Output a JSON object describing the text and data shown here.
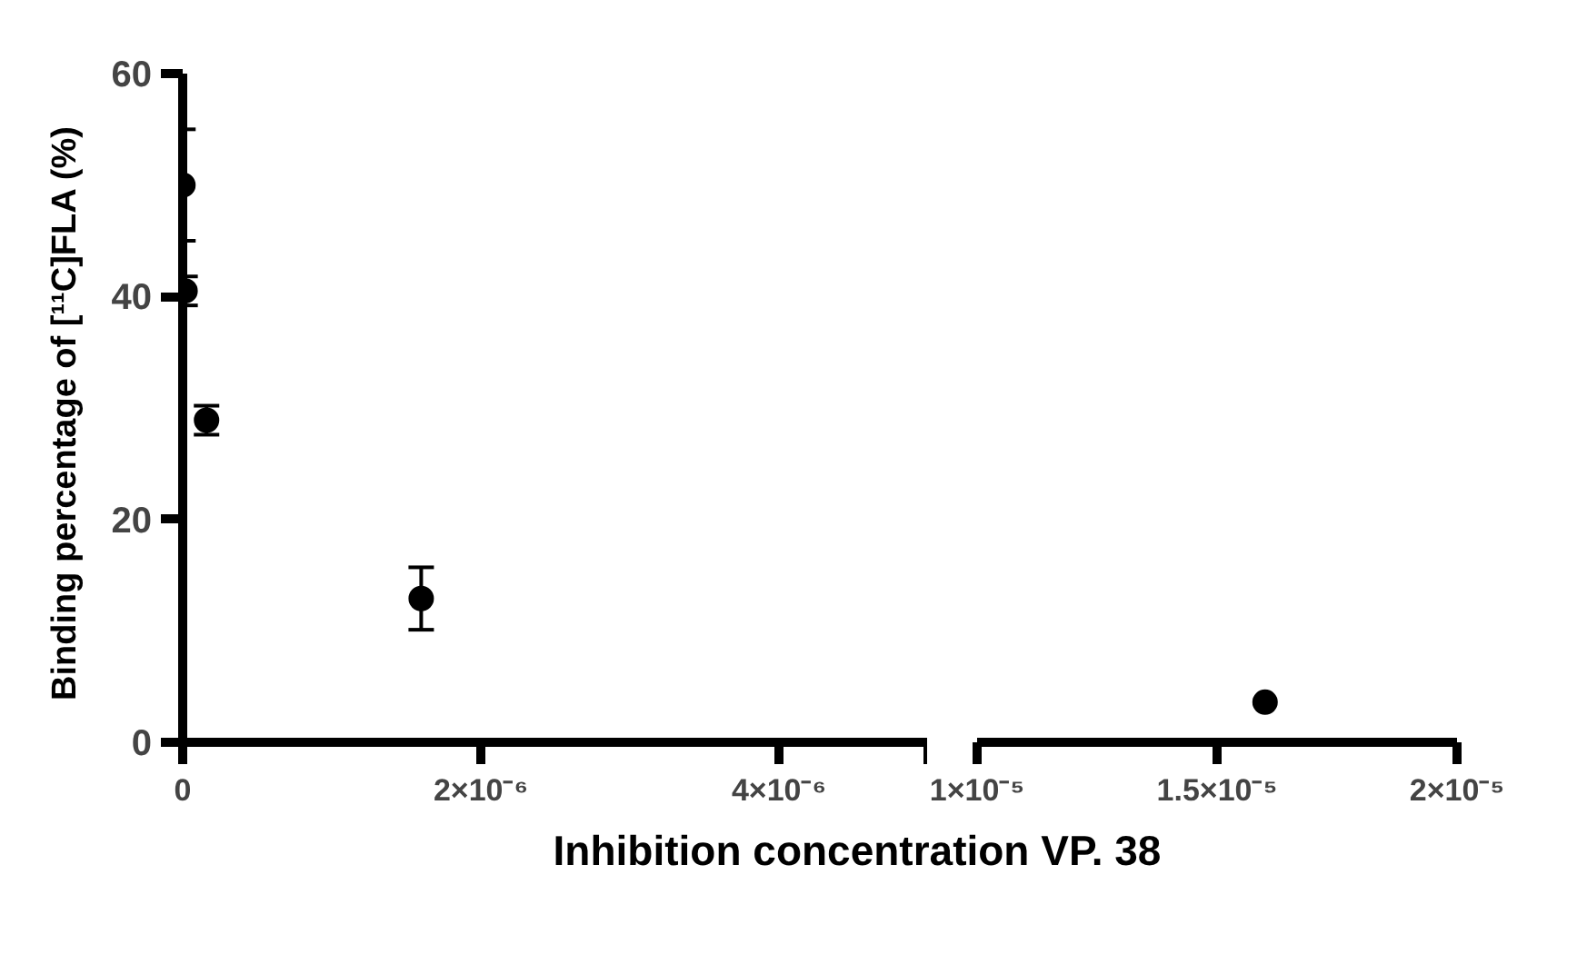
{
  "chart_data": [
    {
      "type": "scatter",
      "ylabel": "Binding percentage of [¹¹C]FLA  (%)",
      "xlabel": "Inhibition concentration VP. 38",
      "x": [
        1.6e-09,
        1.6e-08,
        1.6e-07,
        1.6e-06
      ],
      "values": [
        50,
        40.5,
        28.9,
        12.9
      ],
      "errors": [
        5,
        1.3,
        1.3,
        2.8
      ],
      "color": "#000000",
      "marker": "circle",
      "xlim": [
        0,
        5e-06
      ],
      "ylim": [
        0,
        60
      ],
      "xticks": [
        0,
        {
          "value": 2e-06,
          "label": "2×10⁻⁶"
        },
        {
          "value": 4e-06,
          "label": "4×10⁻⁶"
        },
        {
          "value": 5e-06,
          "label": null
        }
      ],
      "yticks": [
        0,
        20,
        40,
        60
      ]
    },
    {
      "type": "scatter",
      "x": [
        1.6e-05
      ],
      "values": [
        3.6
      ],
      "color": "#000000",
      "marker": "circle",
      "xlim": [
        1e-05,
        2e-05
      ],
      "ylim": [
        0,
        60
      ],
      "xticks": [
        {
          "value": 1e-05,
          "label": "1×10⁻⁵"
        },
        {
          "value": 1.5e-05,
          "label": "1.5×10⁻⁵"
        },
        {
          "value": 2e-05,
          "label": "2×10⁻⁵"
        }
      ],
      "tick_labels": "x"
    }
  ]
}
